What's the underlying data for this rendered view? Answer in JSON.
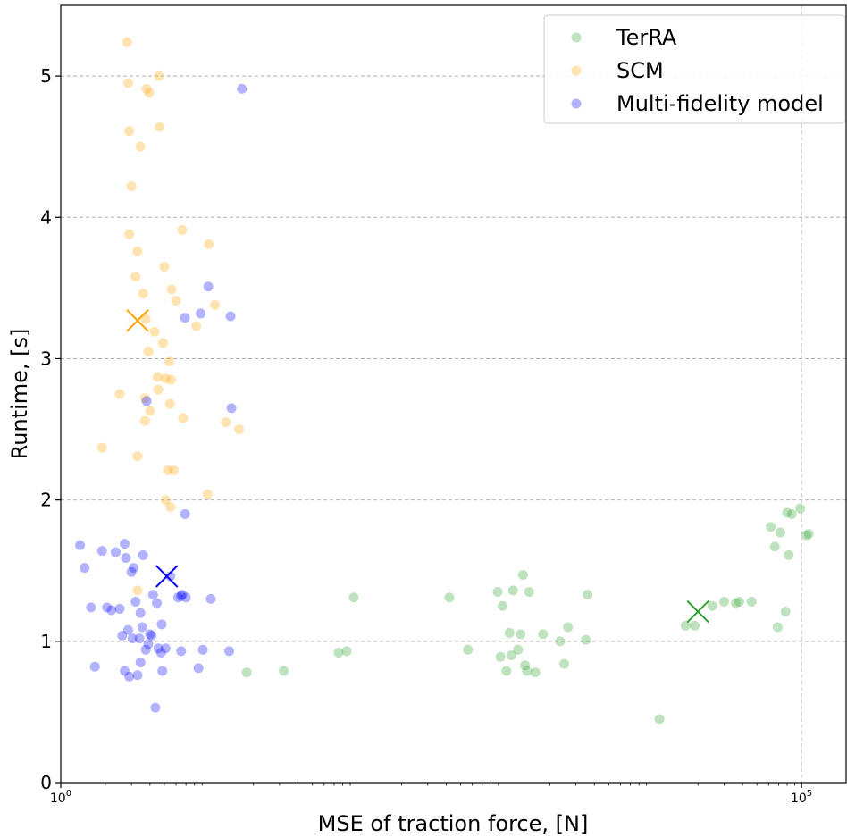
{
  "chart_data": {
    "type": "scatter",
    "title": "",
    "xlabel": "MSE of traction force, [N]",
    "ylabel": "Runtime, [s]",
    "xscale": "log",
    "xlim": [
      1,
      200000
    ],
    "ylim": [
      0,
      5.5
    ],
    "x_ticks": [
      {
        "value": 1,
        "base": "10",
        "exp": "0"
      },
      {
        "value": 100000,
        "base": "10",
        "exp": "5"
      }
    ],
    "y_ticks": [
      0,
      1,
      2,
      3,
      4,
      5
    ],
    "grid": true,
    "legend_position": "top-right",
    "series": [
      {
        "name": "TerRA",
        "color": "#2ca02c",
        "mean": [
          20000,
          1.21
        ],
        "points": [
          [
            18,
            0.78
          ],
          [
            32,
            0.79
          ],
          [
            75,
            0.92
          ],
          [
            85,
            0.93
          ],
          [
            95,
            1.31
          ],
          [
            420,
            1.31
          ],
          [
            560,
            0.94
          ],
          [
            890,
            1.35
          ],
          [
            930,
            0.89
          ],
          [
            960,
            1.25
          ],
          [
            1020,
            0.79
          ],
          [
            1070,
            1.06
          ],
          [
            1100,
            0.9
          ],
          [
            1130,
            1.36
          ],
          [
            1220,
            0.94
          ],
          [
            1270,
            1.05
          ],
          [
            1320,
            1.47
          ],
          [
            1360,
            0.83
          ],
          [
            1400,
            0.79
          ],
          [
            1450,
            1.35
          ],
          [
            1600,
            0.78
          ],
          [
            1800,
            1.05
          ],
          [
            2350,
            1.0
          ],
          [
            2500,
            0.84
          ],
          [
            2650,
            1.1
          ],
          [
            3500,
            1.01
          ],
          [
            3600,
            1.33
          ],
          [
            11000,
            0.45
          ],
          [
            16500,
            1.11
          ],
          [
            19000,
            1.11
          ],
          [
            25000,
            1.25
          ],
          [
            30000,
            1.28
          ],
          [
            36000,
            1.27
          ],
          [
            38000,
            1.28
          ],
          [
            46000,
            1.28
          ],
          [
            69000,
            1.1
          ],
          [
            78000,
            1.21
          ],
          [
            62000,
            1.81
          ],
          [
            66000,
            1.67
          ],
          [
            72000,
            1.77
          ],
          [
            80000,
            1.91
          ],
          [
            82000,
            1.61
          ],
          [
            86000,
            1.9
          ],
          [
            98000,
            1.94
          ],
          [
            108000,
            1.75
          ],
          [
            112000,
            1.76
          ]
        ]
      },
      {
        "name": "SCM",
        "color": "#ffa500",
        "mean": [
          3.3,
          3.27
        ],
        "points": [
          [
            1.9,
            2.37
          ],
          [
            2.5,
            2.75
          ],
          [
            2.8,
            5.24
          ],
          [
            2.85,
            4.95
          ],
          [
            2.9,
            4.61
          ],
          [
            2.9,
            3.88
          ],
          [
            3.0,
            4.22
          ],
          [
            3.2,
            3.58
          ],
          [
            3.3,
            3.76
          ],
          [
            3.3,
            2.31
          ],
          [
            3.3,
            1.36
          ],
          [
            3.45,
            4.5
          ],
          [
            3.6,
            3.46
          ],
          [
            3.7,
            2.72
          ],
          [
            3.7,
            2.56
          ],
          [
            3.75,
            3.28
          ],
          [
            3.8,
            4.91
          ],
          [
            3.9,
            3.05
          ],
          [
            3.95,
            4.88
          ],
          [
            4.0,
            2.63
          ],
          [
            4.3,
            3.19
          ],
          [
            4.5,
            2.87
          ],
          [
            4.55,
            2.78
          ],
          [
            4.6,
            5.0
          ],
          [
            4.65,
            4.64
          ],
          [
            4.9,
            3.11
          ],
          [
            5.0,
            3.65
          ],
          [
            5.1,
            2.86
          ],
          [
            5.1,
            2.0
          ],
          [
            5.3,
            2.21
          ],
          [
            5.4,
            2.98
          ],
          [
            5.45,
            2.68
          ],
          [
            5.5,
            1.95
          ],
          [
            5.55,
            2.85
          ],
          [
            5.6,
            3.49
          ],
          [
            5.8,
            2.21
          ],
          [
            6.0,
            3.41
          ],
          [
            6.6,
            3.91
          ],
          [
            6.7,
            2.58
          ],
          [
            8.2,
            3.23
          ],
          [
            9.8,
            2.04
          ],
          [
            10.0,
            3.81
          ],
          [
            11.0,
            3.38
          ],
          [
            13.0,
            2.55
          ],
          [
            16.0,
            2.5
          ]
        ]
      },
      {
        "name": "Multi-fidelity model",
        "color": "#0000ff",
        "mean": [
          5.2,
          1.46
        ],
        "points": [
          [
            1.35,
            1.68
          ],
          [
            1.45,
            1.52
          ],
          [
            1.6,
            1.24
          ],
          [
            1.7,
            0.82
          ],
          [
            1.9,
            1.64
          ],
          [
            2.05,
            1.24
          ],
          [
            2.2,
            1.22
          ],
          [
            2.35,
            1.63
          ],
          [
            2.5,
            1.23
          ],
          [
            2.6,
            1.04
          ],
          [
            2.7,
            1.69
          ],
          [
            2.7,
            0.79
          ],
          [
            2.75,
            1.59
          ],
          [
            2.85,
            1.08
          ],
          [
            2.9,
            0.75
          ],
          [
            3.0,
            1.49
          ],
          [
            3.05,
            1.02
          ],
          [
            3.1,
            1.52
          ],
          [
            3.2,
            1.28
          ],
          [
            3.3,
            0.76
          ],
          [
            3.4,
            1.02
          ],
          [
            3.45,
            1.2
          ],
          [
            3.45,
            0.85
          ],
          [
            3.55,
            1.1
          ],
          [
            3.6,
            1.61
          ],
          [
            3.75,
            0.94
          ],
          [
            3.8,
            2.7
          ],
          [
            3.9,
            0.98
          ],
          [
            4.0,
            1.05
          ],
          [
            4.1,
            1.04
          ],
          [
            4.2,
            1.33
          ],
          [
            4.35,
            0.53
          ],
          [
            4.45,
            1.27
          ],
          [
            4.55,
            0.95
          ],
          [
            4.75,
            0.92
          ],
          [
            4.8,
            1.12
          ],
          [
            4.85,
            0.79
          ],
          [
            5.1,
            0.95
          ],
          [
            5.5,
            1.46
          ],
          [
            6.2,
            1.31
          ],
          [
            6.5,
            1.32
          ],
          [
            6.5,
            0.93
          ],
          [
            6.6,
            1.33
          ],
          [
            6.9,
            3.29
          ],
          [
            6.9,
            1.9
          ],
          [
            7.0,
            1.31
          ],
          [
            8.5,
            0.81
          ],
          [
            8.8,
            3.32
          ],
          [
            9.1,
            0.94
          ],
          [
            9.9,
            3.51
          ],
          [
            10.3,
            1.3
          ],
          [
            13.7,
            0.93
          ],
          [
            14.0,
            3.3
          ],
          [
            14.2,
            2.65
          ],
          [
            16.7,
            4.91
          ]
        ]
      }
    ]
  }
}
